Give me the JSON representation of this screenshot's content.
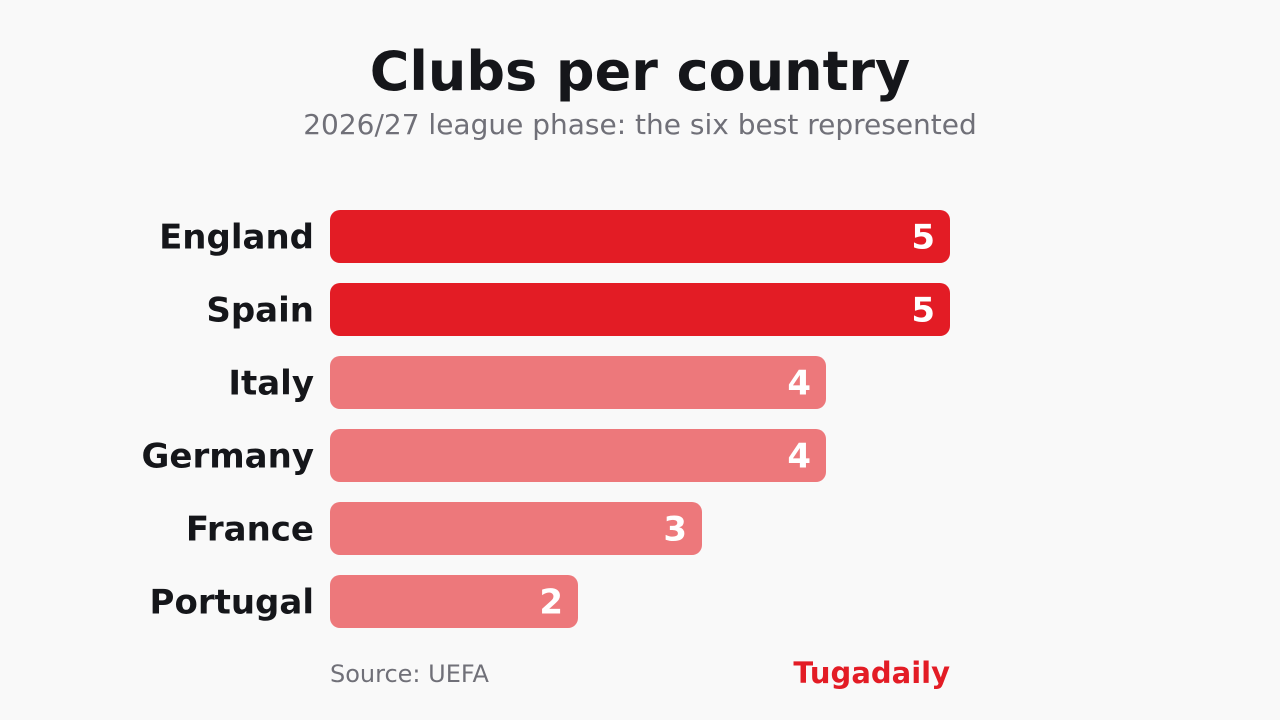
{
  "chart_data": {
    "type": "bar",
    "orientation": "horizontal",
    "title": "Clubs per country",
    "subtitle": "2026/27 league phase: the six best represented",
    "categories": [
      "England",
      "Spain",
      "Italy",
      "Germany",
      "France",
      "Portugal"
    ],
    "values": [
      5,
      5,
      4,
      4,
      3,
      2
    ],
    "xlim": [
      0,
      5
    ],
    "grid": false,
    "legend": "none",
    "colors": {
      "top": "#e31c25",
      "other": "#ed787b",
      "value_label": "#ffffff",
      "category_label": "#15161a"
    }
  },
  "footer": {
    "source": "Source: UEFA",
    "brand": "Tugadaily"
  }
}
